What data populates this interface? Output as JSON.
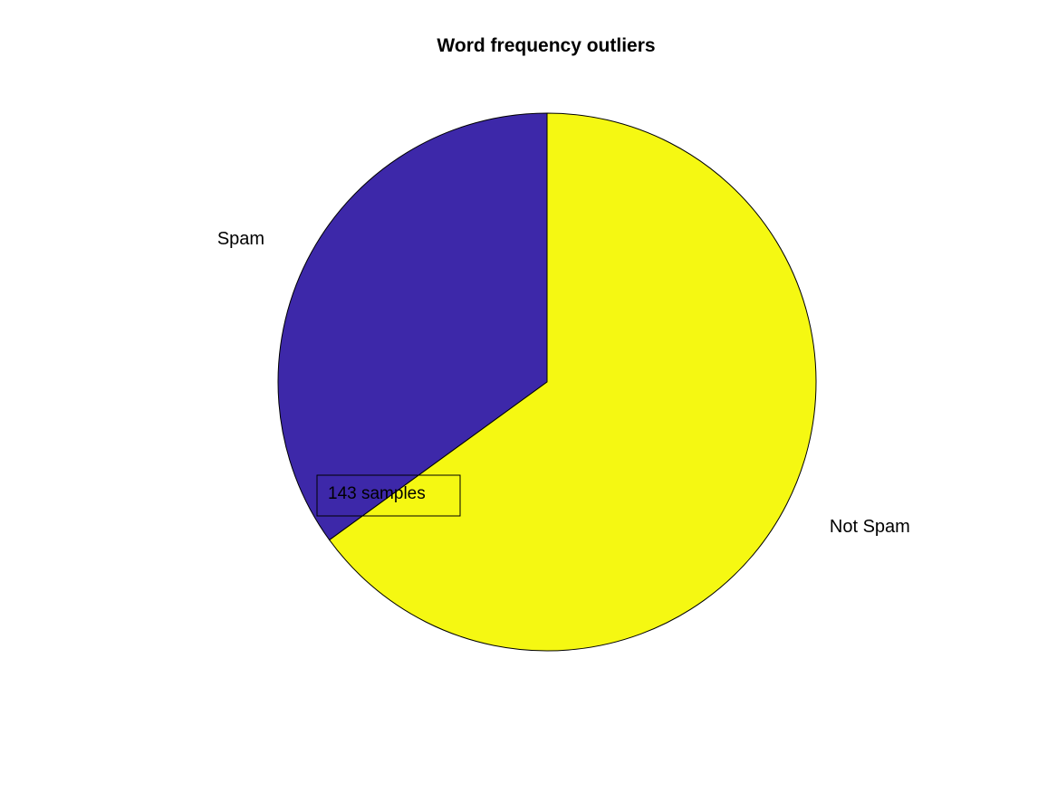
{
  "chart_data": {
    "type": "pie",
    "title": "Word frequency outliers",
    "slices": [
      {
        "label": "Spam",
        "value": 35,
        "color": "#3d28a9"
      },
      {
        "label": "Not Spam",
        "value": 65,
        "color": "#f5f812"
      }
    ],
    "start_angle_deg": 90,
    "direction": "counterclockwise",
    "annotation": {
      "text": "143 samples"
    }
  }
}
